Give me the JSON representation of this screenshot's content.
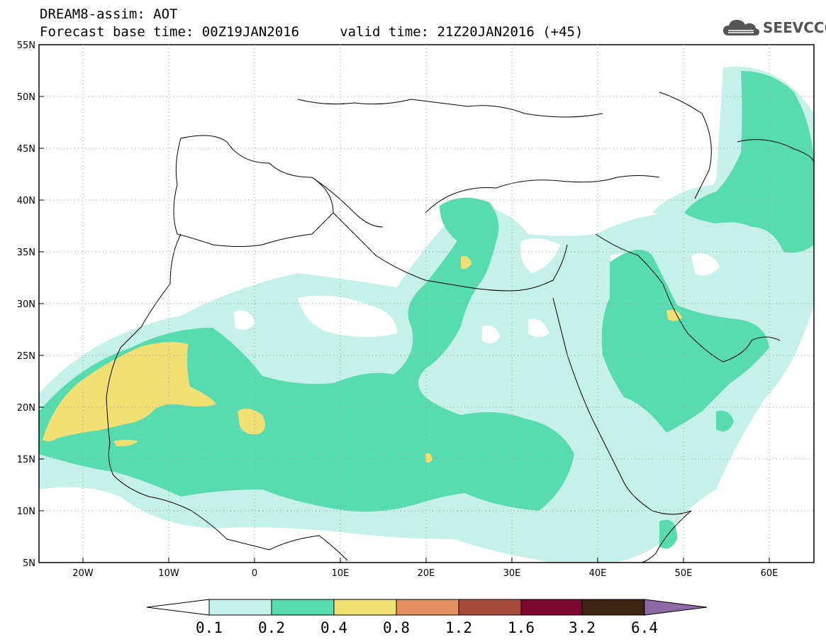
{
  "header": {
    "line1": "DREAM8-assim: AOT",
    "line2": "Forecast base time: 00Z19JAN2016     valid time: 21Z20JAN2016 (+45)"
  },
  "logo": {
    "text": "SEEVCCC",
    "icon": "cloud-logo-icon"
  },
  "map": {
    "lat_labels": [
      "55N",
      "50N",
      "45N",
      "40N",
      "35N",
      "30N",
      "25N",
      "20N",
      "15N",
      "10N",
      "5N"
    ],
    "lon_labels": [
      "20W",
      "10W",
      "0",
      "10E",
      "20E",
      "30E",
      "40E",
      "50E",
      "60E"
    ]
  },
  "colorbar": {
    "colors": {
      "under": "#ffffff",
      "c1": "#c6f1e8",
      "c2": "#58dcaf",
      "c3": "#f2e074",
      "c4": "#e58f63",
      "c5": "#a7493b",
      "c6": "#7d0830",
      "c7": "#3c2511",
      "over": "#8d6aa5"
    },
    "labels": [
      "0.1",
      "0.2",
      "0.4",
      "0.8",
      "1.2",
      "1.6",
      "3.2",
      "6.4"
    ]
  }
}
